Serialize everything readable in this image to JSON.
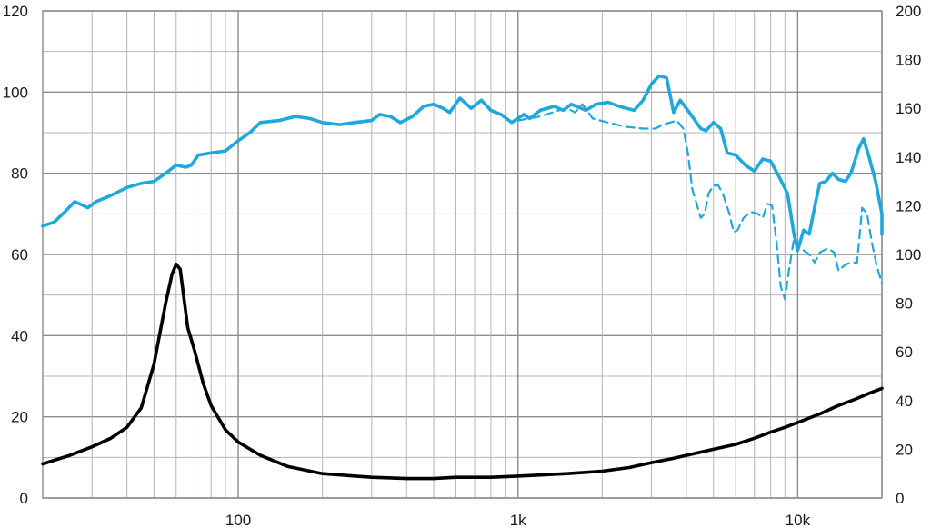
{
  "chart_data": {
    "type": "line",
    "title": "",
    "xlabel": "",
    "ylabel": "",
    "y2label": "",
    "x_scale": "log",
    "xlim": [
      20,
      20000
    ],
    "ylim": [
      0,
      120
    ],
    "y2lim": [
      0,
      200
    ],
    "grid": true,
    "x_tick_labels": [
      {
        "value": 100,
        "label": "100"
      },
      {
        "value": 1000,
        "label": "1k"
      },
      {
        "value": 10000,
        "label": "10k"
      }
    ],
    "y_tick_labels": [
      "0",
      "20",
      "40",
      "60",
      "80",
      "100",
      "120"
    ],
    "y2_tick_labels": [
      "0",
      "20",
      "40",
      "60",
      "80",
      "100",
      "120",
      "140",
      "160",
      "180",
      "200"
    ],
    "colors": {
      "response": "#1ea8dc",
      "impedance": "#000000",
      "grid_major": "#8c8c8c",
      "grid_minor": "#b4b4b4"
    },
    "series": [
      {
        "axis": "left",
        "style": "solid",
        "color": "#1ea8dc",
        "points": [
          [
            20,
            67
          ],
          [
            22,
            68
          ],
          [
            24,
            70.5
          ],
          [
            26,
            73
          ],
          [
            28,
            72
          ],
          [
            29,
            71.5
          ],
          [
            31,
            73
          ],
          [
            35,
            74.5
          ],
          [
            40,
            76.5
          ],
          [
            45,
            77.5
          ],
          [
            50,
            78
          ],
          [
            55,
            80
          ],
          [
            60,
            82
          ],
          [
            65,
            81.5
          ],
          [
            68,
            82
          ],
          [
            72,
            84.5
          ],
          [
            80,
            85
          ],
          [
            90,
            85.5
          ],
          [
            100,
            88
          ],
          [
            110,
            90
          ],
          [
            120,
            92.5
          ],
          [
            140,
            93
          ],
          [
            160,
            94
          ],
          [
            180,
            93.5
          ],
          [
            200,
            92.5
          ],
          [
            230,
            92
          ],
          [
            260,
            92.5
          ],
          [
            300,
            93
          ],
          [
            320,
            94.5
          ],
          [
            350,
            94
          ],
          [
            380,
            92.5
          ],
          [
            420,
            94
          ],
          [
            460,
            96.5
          ],
          [
            500,
            97
          ],
          [
            540,
            96
          ],
          [
            570,
            95
          ],
          [
            620,
            98.5
          ],
          [
            680,
            96
          ],
          [
            740,
            98
          ],
          [
            800,
            95.5
          ],
          [
            870,
            94.5
          ],
          [
            950,
            92.5
          ],
          [
            1050,
            94.5
          ],
          [
            1100,
            93.5
          ],
          [
            1200,
            95.5
          ],
          [
            1350,
            96.5
          ],
          [
            1450,
            95.5
          ],
          [
            1550,
            97
          ],
          [
            1750,
            95.5
          ],
          [
            1900,
            97
          ],
          [
            2100,
            97.5
          ],
          [
            2300,
            96.5
          ],
          [
            2600,
            95.5
          ],
          [
            2800,
            98
          ],
          [
            3000,
            102
          ],
          [
            3200,
            104
          ],
          [
            3400,
            103.5
          ],
          [
            3600,
            95
          ],
          [
            3800,
            98
          ],
          [
            4100,
            95
          ],
          [
            4500,
            91
          ],
          [
            4700,
            90.5
          ],
          [
            5000,
            92.5
          ],
          [
            5300,
            91
          ],
          [
            5600,
            85
          ],
          [
            6000,
            84.5
          ],
          [
            6500,
            82
          ],
          [
            7000,
            80.5
          ],
          [
            7500,
            83.5
          ],
          [
            8000,
            83
          ],
          [
            8600,
            79
          ],
          [
            9200,
            75
          ],
          [
            9700,
            65
          ],
          [
            10000,
            61
          ],
          [
            10500,
            66
          ],
          [
            11000,
            65
          ],
          [
            11600,
            73
          ],
          [
            12000,
            77.5
          ],
          [
            12600,
            78
          ],
          [
            13300,
            80
          ],
          [
            14000,
            78.5
          ],
          [
            14800,
            78
          ],
          [
            15500,
            80
          ],
          [
            16500,
            86
          ],
          [
            17200,
            88.5
          ],
          [
            18000,
            84
          ],
          [
            19000,
            78
          ],
          [
            20000,
            70
          ],
          [
            20000,
            65
          ]
        ]
      },
      {
        "axis": "left",
        "style": "dashed",
        "color": "#1ea8dc",
        "points": [
          [
            1000,
            93
          ],
          [
            1200,
            94
          ],
          [
            1400,
            95.5
          ],
          [
            1500,
            96
          ],
          [
            1600,
            95
          ],
          [
            1700,
            97
          ],
          [
            1850,
            93.5
          ],
          [
            2100,
            92.5
          ],
          [
            2400,
            91.5
          ],
          [
            2800,
            91
          ],
          [
            3100,
            91
          ],
          [
            3300,
            92
          ],
          [
            3500,
            92.5
          ],
          [
            3700,
            93
          ],
          [
            3900,
            91
          ],
          [
            4050,
            85
          ],
          [
            4200,
            76
          ],
          [
            4350,
            72.5
          ],
          [
            4500,
            69
          ],
          [
            4650,
            70
          ],
          [
            4800,
            75
          ],
          [
            5000,
            77
          ],
          [
            5200,
            77
          ],
          [
            5400,
            75
          ],
          [
            5700,
            70
          ],
          [
            5900,
            65.5
          ],
          [
            6100,
            66
          ],
          [
            6400,
            69
          ],
          [
            6800,
            70.5
          ],
          [
            7200,
            70
          ],
          [
            7500,
            69
          ],
          [
            7800,
            72.5
          ],
          [
            8100,
            72
          ],
          [
            8400,
            63
          ],
          [
            8700,
            52
          ],
          [
            9000,
            49
          ],
          [
            9300,
            56
          ],
          [
            9700,
            64
          ],
          [
            10000,
            62
          ],
          [
            10500,
            61
          ],
          [
            11000,
            60
          ],
          [
            11500,
            58
          ],
          [
            12000,
            60.5
          ],
          [
            12800,
            61.5
          ],
          [
            13500,
            60.5
          ],
          [
            14000,
            56
          ],
          [
            14800,
            57.5
          ],
          [
            15500,
            58
          ],
          [
            16300,
            58
          ],
          [
            17000,
            71.5
          ],
          [
            17700,
            70
          ],
          [
            18400,
            63
          ],
          [
            19200,
            57
          ],
          [
            20000,
            53
          ]
        ]
      },
      {
        "axis": "right",
        "style": "solid",
        "color": "#000000",
        "points": [
          [
            20,
            14
          ],
          [
            25,
            17.5
          ],
          [
            30,
            21
          ],
          [
            35,
            24.5
          ],
          [
            40,
            29
          ],
          [
            45,
            37
          ],
          [
            50,
            55
          ],
          [
            55,
            80
          ],
          [
            58,
            92
          ],
          [
            60,
            96
          ],
          [
            62,
            94
          ],
          [
            66,
            70
          ],
          [
            70,
            60
          ],
          [
            75,
            47
          ],
          [
            80,
            38
          ],
          [
            90,
            28
          ],
          [
            100,
            23
          ],
          [
            120,
            17.5
          ],
          [
            150,
            13
          ],
          [
            200,
            10
          ],
          [
            300,
            8.5
          ],
          [
            400,
            8
          ],
          [
            500,
            8
          ],
          [
            600,
            8.5
          ],
          [
            800,
            8.5
          ],
          [
            1000,
            9
          ],
          [
            1500,
            10
          ],
          [
            2000,
            11
          ],
          [
            2500,
            12.5
          ],
          [
            3000,
            14.5
          ],
          [
            3500,
            16
          ],
          [
            4000,
            17.5
          ],
          [
            5000,
            20
          ],
          [
            6000,
            22
          ],
          [
            7000,
            24.5
          ],
          [
            8000,
            27
          ],
          [
            9000,
            29
          ],
          [
            10000,
            31
          ],
          [
            12000,
            34.5
          ],
          [
            14000,
            38
          ],
          [
            16000,
            40.5
          ],
          [
            18000,
            43
          ],
          [
            20000,
            45
          ]
        ]
      }
    ]
  }
}
